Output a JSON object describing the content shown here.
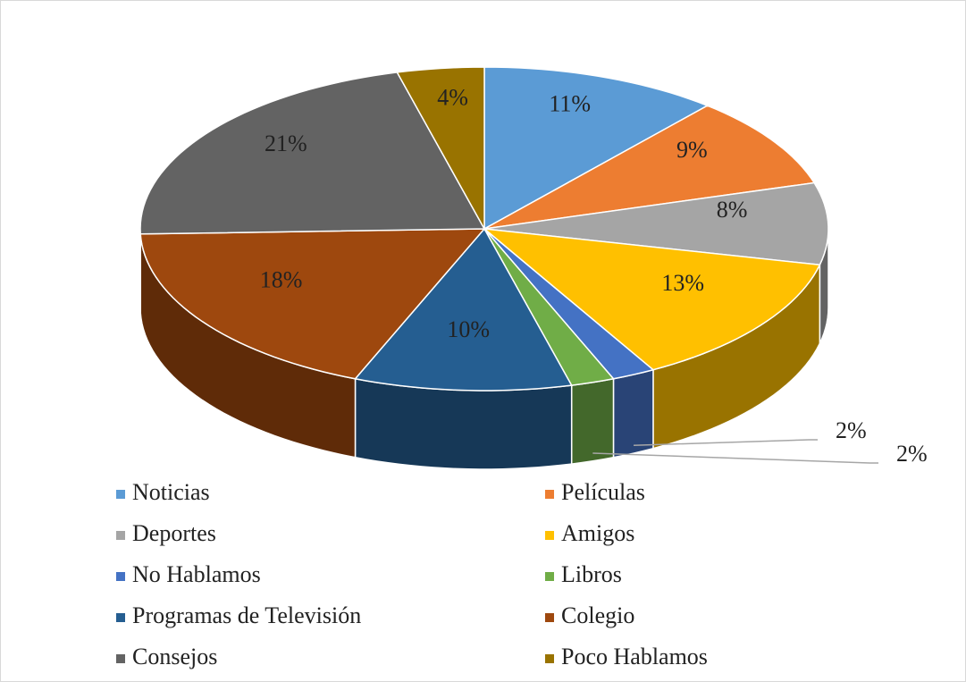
{
  "chart_data": {
    "type": "pie3d",
    "categories": [
      "Noticias",
      "Películas",
      "Deportes",
      "Amigos",
      "No Hablamos",
      "Libros",
      "Programas de Televisión",
      "Colegio",
      "Consejos",
      "Poco Hablamos"
    ],
    "values": [
      11,
      9,
      8,
      13,
      2,
      2,
      10,
      18,
      21,
      4
    ],
    "value_labels": [
      "11%",
      "9%",
      "8%",
      "13%",
      "2%",
      "2%",
      "10%",
      "18%",
      "21%",
      "4%"
    ],
    "colors": [
      "#5b9bd5",
      "#ed7d31",
      "#a5a5a5",
      "#ffc000",
      "#4472c4",
      "#70ad47",
      "#255e91",
      "#9e480e",
      "#636363",
      "#997300"
    ],
    "legend": "bottom"
  }
}
